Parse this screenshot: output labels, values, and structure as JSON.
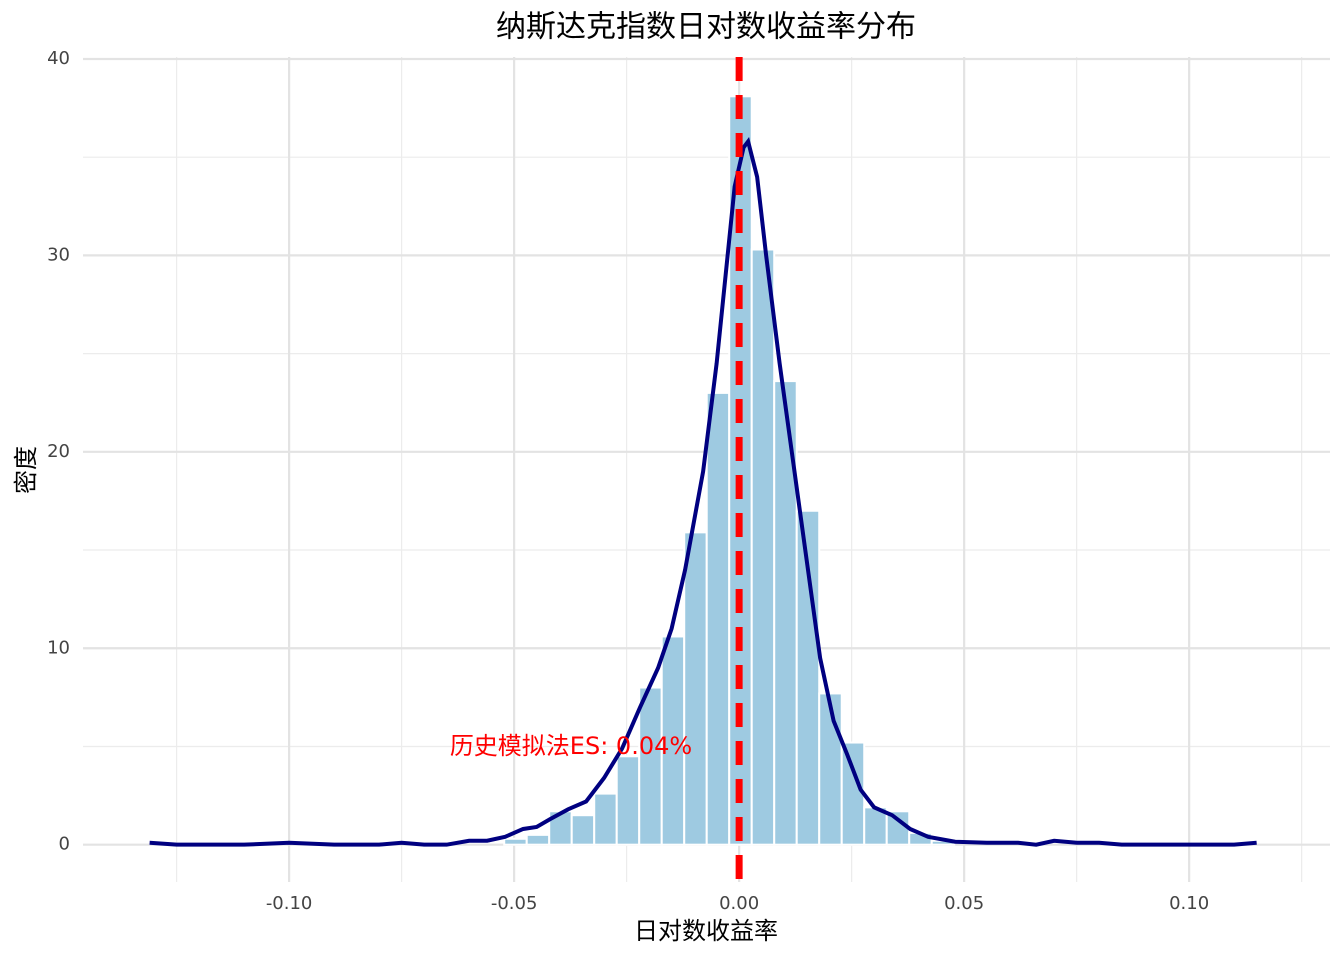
{
  "chart_data": {
    "type": "histogram",
    "title": "纳斯达克指数日对数收益率分布",
    "x_label": "日对数收益率",
    "y_label": "密度",
    "annotation": "历史模拟法ES: 0.04%",
    "bins": [
      -0.0522,
      -0.0472,
      -0.0422,
      -0.0372,
      -0.0322,
      -0.0272,
      -0.0222,
      -0.0172,
      -0.0122,
      -0.0072,
      -0.0022,
      0.0028,
      0.0078,
      0.0128,
      0.0178,
      0.0228,
      0.0278,
      0.0328,
      0.0378,
      0.0428,
      0.0478
    ],
    "values": [
      0.3,
      0.5,
      1.7,
      1.5,
      2.6,
      4.5,
      8.0,
      10.6,
      15.9,
      23.0,
      38.1,
      30.3,
      23.6,
      17.0,
      7.7,
      5.2,
      1.9,
      1.7,
      0.6,
      0.2
    ],
    "color": "#9ecae1",
    "density": {
      "color": "#000080",
      "x": [
        -0.131,
        -0.125,
        -0.11,
        -0.1,
        -0.09,
        -0.08,
        -0.075,
        -0.07,
        -0.065,
        -0.06,
        -0.056,
        -0.052,
        -0.048,
        -0.045,
        -0.042,
        -0.038,
        -0.034,
        -0.03,
        -0.026,
        -0.022,
        -0.018,
        -0.015,
        -0.012,
        -0.008,
        -0.005,
        -0.003,
        -0.001,
        0.001,
        0.002,
        0.004,
        0.006,
        0.009,
        0.012,
        0.015,
        0.018,
        0.021,
        0.024,
        0.027,
        0.03,
        0.034,
        0.038,
        0.042,
        0.048,
        0.055,
        0.062,
        0.066,
        0.07,
        0.075,
        0.08,
        0.085,
        0.1,
        0.11,
        0.115
      ],
      "values": [
        0.1,
        0.0,
        0.0,
        0.1,
        0.0,
        0.0,
        0.1,
        0.0,
        0.0,
        0.2,
        0.2,
        0.4,
        0.8,
        0.9,
        1.3,
        1.8,
        2.2,
        3.4,
        4.9,
        7.0,
        9.0,
        11.0,
        14.0,
        19.0,
        24.5,
        29.0,
        33.5,
        35.5,
        35.8,
        34.0,
        30.0,
        24.5,
        19.5,
        14.5,
        9.5,
        6.3,
        4.6,
        2.8,
        1.9,
        1.5,
        0.8,
        0.4,
        0.15,
        0.1,
        0.1,
        0.0,
        0.2,
        0.1,
        0.1,
        0.0,
        0.0,
        0.0,
        0.1
      ]
    },
    "vline": {
      "x": 0,
      "color": "#ff0000"
    },
    "xlim": [
      -0.1458,
      0.1313
    ],
    "ylim": [
      -1.9,
      40.1
    ],
    "xticks": [
      {
        "value": -0.1,
        "label": "-0.10"
      },
      {
        "value": -0.05,
        "label": "-0.05"
      },
      {
        "value": 0,
        "label": "0.00"
      },
      {
        "value": 0.05,
        "label": "0.05"
      },
      {
        "value": 0.1,
        "label": "0.10"
      }
    ],
    "yticks": [
      0,
      10,
      20,
      30,
      40
    ],
    "x_minor_grid": [
      -0.125,
      -0.075,
      -0.025,
      0.025,
      0.075,
      0.125
    ],
    "y_minor_grid": [
      5,
      15,
      25,
      35
    ],
    "grid": true
  }
}
